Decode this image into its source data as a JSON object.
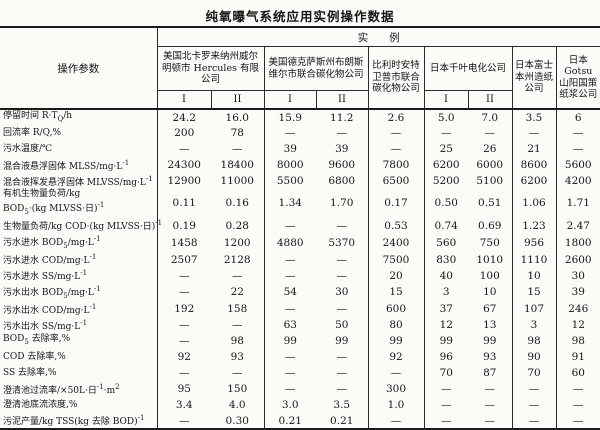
{
  "colors": {
    "paper": "#fcfbf8",
    "ink": "#1b1b1b",
    "rule": "#2b2b2b"
  },
  "title": "纯氧曝气系统应用实例操作数据",
  "table": {
    "corner_header": "操作参数",
    "group_header": "实　　例",
    "companies": [
      {
        "name": "美国北卡罗来纳州威尔明顿市 Hercules 有限公司",
        "sub": [
          "I",
          "II"
        ]
      },
      {
        "name": "美国德克萨斯州布朗斯维尔市联合碳化物公司",
        "sub": [
          "I",
          "II"
        ]
      },
      {
        "name": "比利时安特卫普市联合碳化物公司",
        "sub": []
      },
      {
        "name": "日本千叶电化公司",
        "sub": [
          "I",
          "II"
        ]
      },
      {
        "name": "日本富士本州造纸公司",
        "sub": []
      },
      {
        "name": "日本 Gotsu 山阳国策纸浆公司",
        "sub": []
      }
    ],
    "rows": [
      {
        "label": "停留时间 R·T<sub>Q</sub>/h",
        "values": [
          "24.2",
          "16.0",
          "15.9",
          "11.2",
          "2.6",
          "5.0",
          "7.0",
          "3.5",
          "6"
        ]
      },
      {
        "label": "回流率 R/Q,%",
        "values": [
          "200",
          "78",
          "—",
          "—",
          "—",
          "—",
          "—",
          "—",
          "—"
        ]
      },
      {
        "label": "污水温度/℃",
        "values": [
          "—",
          "—",
          "39",
          "39",
          "—",
          "25",
          "26",
          "21",
          "—"
        ]
      },
      {
        "label": "混合液悬浮固体 MLSS/mg·L<sup>-1</sup>",
        "values": [
          "24300",
          "18400",
          "8000",
          "9600",
          "7800",
          "6200",
          "6000",
          "8600",
          "5600"
        ]
      },
      {
        "label": "混合液挥发悬浮固体 MLVSS/mg·L<sup>-1</sup>",
        "values": [
          "12900",
          "11000",
          "5500",
          "6800",
          "6500",
          "5200",
          "5100",
          "6200",
          "4200"
        ]
      },
      {
        "label": "有机生物量负荷/kg\nBOD<sub>5</sub>·(kg MLVSS·日)<sup>-1</sup>",
        "values": [
          "0.11",
          "0.16",
          "1.34",
          "1.70",
          "0.17",
          "0.50",
          "0.51",
          "1.06",
          "1.71"
        ]
      },
      {
        "label": "生物量负荷/kg COD·(kg MLVSS·日)<sup>-1</sup>",
        "values": [
          "0.19",
          "0.28",
          "—",
          "—",
          "0.53",
          "0.74",
          "0.69",
          "1.23",
          "2.47"
        ]
      },
      {
        "label": "污水进水 BOD<sub>5</sub>/mg·L<sup>-1</sup>",
        "values": [
          "1458",
          "1200",
          "4880",
          "5370",
          "2400",
          "560",
          "750",
          "956",
          "1800"
        ]
      },
      {
        "label": "污水进水 COD/mg·L<sup>-1</sup>",
        "values": [
          "2507",
          "2128",
          "—",
          "—",
          "7500",
          "830",
          "1010",
          "1110",
          "2600"
        ]
      },
      {
        "label": "污水进水 SS/mg·L<sup>-1</sup>",
        "values": [
          "—",
          "—",
          "—",
          "—",
          "20",
          "40",
          "100",
          "10",
          "30"
        ]
      },
      {
        "label": "污水出水 BOD<sub>5</sub>/mg·L<sup>-1</sup>",
        "values": [
          "—",
          "22",
          "54",
          "30",
          "15",
          "3",
          "10",
          "15",
          "39"
        ]
      },
      {
        "label": "污水出水 COD/mg·L<sup>-1</sup>",
        "values": [
          "192",
          "158",
          "—",
          "—",
          "600",
          "37",
          "67",
          "107",
          "246"
        ]
      },
      {
        "label": "污水出水 SS/mg·L<sup>-1</sup>",
        "values": [
          "—",
          "—",
          "63",
          "50",
          "80",
          "12",
          "13",
          "3",
          "12"
        ]
      },
      {
        "label": "BOD<sub>5</sub> 去除率,%",
        "values": [
          "—",
          "98",
          "99",
          "99",
          "99",
          "99",
          "99",
          "98",
          "98"
        ]
      },
      {
        "label": "COD 去除率,%",
        "values": [
          "92",
          "93",
          "—",
          "—",
          "92",
          "96",
          "93",
          "90",
          "91"
        ]
      },
      {
        "label": "SS 去除率,%",
        "values": [
          "—",
          "—",
          "—",
          "—",
          "—",
          "70",
          "87",
          "70",
          "60"
        ]
      },
      {
        "label": "澄清池过流率/×50L·日<sup>-1</sup>·m<sup>2</sup>",
        "values": [
          "95",
          "150",
          "—",
          "—",
          "300",
          "—",
          "—",
          "—",
          "—"
        ]
      },
      {
        "label": "澄清池底流浓度,%",
        "values": [
          "3.4",
          "4.0",
          "3.0",
          "3.5",
          "1.0",
          "—",
          "—",
          "—",
          "—"
        ]
      },
      {
        "label": "污泥产量/kg TSS(kg 去除 BOD)<sup>-1</sup>",
        "values": [
          "—",
          "0.30",
          "0.21",
          "0.21",
          "—",
          "—",
          "—",
          "—",
          "—"
        ]
      }
    ]
  }
}
